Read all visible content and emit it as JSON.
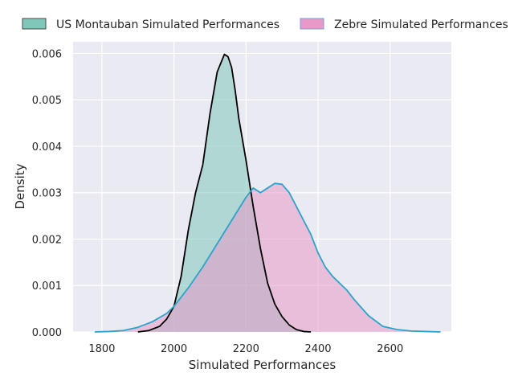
{
  "chart_data": {
    "type": "area",
    "title": "",
    "xlabel": "Simulated Performances",
    "ylabel": "Density",
    "xlim": [
      1720,
      2770
    ],
    "ylim": [
      0,
      0.00625
    ],
    "xticks": [
      1800,
      2000,
      2200,
      2400,
      2600
    ],
    "yticks": [
      0.0,
      0.001,
      0.002,
      0.003,
      0.004,
      0.005,
      0.006
    ],
    "xtick_labels": [
      "1800",
      "2000",
      "2200",
      "2400",
      "2600"
    ],
    "ytick_labels": [
      "0.000",
      "0.001",
      "0.002",
      "0.003",
      "0.004",
      "0.005",
      "0.006"
    ],
    "grid": true,
    "legend_position": "top",
    "series": [
      {
        "name": "US Montauban Simulated Performances",
        "fill_color": "#7fc7b9",
        "line_color": "#000000",
        "x": [
          1900,
          1930,
          1960,
          1980,
          2000,
          2020,
          2040,
          2060,
          2080,
          2100,
          2120,
          2140,
          2150,
          2160,
          2170,
          2180,
          2200,
          2220,
          2240,
          2260,
          2280,
          2300,
          2320,
          2340,
          2360,
          2380
        ],
        "y": [
          0.0,
          3e-05,
          0.00012,
          0.00028,
          0.00055,
          0.0012,
          0.0022,
          0.003,
          0.0036,
          0.0047,
          0.0056,
          0.00598,
          0.00593,
          0.0057,
          0.0052,
          0.0046,
          0.0037,
          0.0027,
          0.0018,
          0.00105,
          0.0006,
          0.00033,
          0.00015,
          5e-05,
          1e-05,
          0.0
        ]
      },
      {
        "name": "Zebre Simulated Performances",
        "fill_color": "#e899c8",
        "line_color": "#2aa3cc",
        "x": [
          1780,
          1820,
          1860,
          1900,
          1940,
          1980,
          2000,
          2040,
          2080,
          2120,
          2160,
          2200,
          2220,
          2240,
          2260,
          2280,
          2300,
          2320,
          2340,
          2360,
          2380,
          2400,
          2420,
          2440,
          2460,
          2480,
          2500,
          2540,
          2580,
          2620,
          2660,
          2700,
          2740
        ],
        "y": [
          0.0,
          1e-05,
          3e-05,
          0.0001,
          0.00022,
          0.0004,
          0.00055,
          0.00095,
          0.0014,
          0.0019,
          0.0024,
          0.0029,
          0.0031,
          0.003,
          0.0031,
          0.0032,
          0.00318,
          0.003,
          0.0027,
          0.0024,
          0.0021,
          0.0017,
          0.0014,
          0.0012,
          0.00105,
          0.0009,
          0.0007,
          0.00035,
          0.00012,
          5e-05,
          2e-05,
          1e-05,
          0.0
        ]
      }
    ]
  }
}
